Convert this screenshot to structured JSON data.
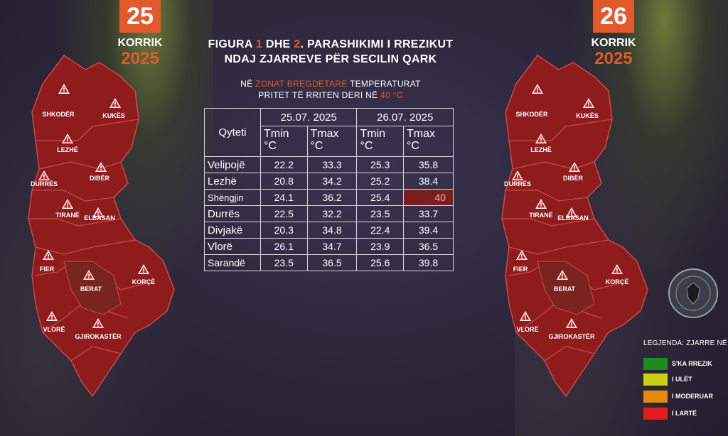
{
  "left_date": {
    "day": "25",
    "month": "KORRIK",
    "year": "2025"
  },
  "right_date": {
    "day": "26",
    "month": "KORRIK",
    "year": "2025"
  },
  "title": {
    "part1": "FIGURA ",
    "num1": "1",
    "part2": " DHE ",
    "num2": "2",
    "part3": ". PARASHIKIMI I RREZIKUT",
    "line2": "NDAJ ZJARREVE PËR SECILIN QARK"
  },
  "subtitle": {
    "pre": "NË ",
    "hl": "ZONAT BREGDETARE",
    "post": " TEMPERATURAT",
    "line2": "PRITET TË RRITEN DERI NË ",
    "hl2": "40 °C"
  },
  "table": {
    "city_header": "Qyteti",
    "date1": "25.07. 2025",
    "date2": "26.07. 2025",
    "tmin": "Tmin °C",
    "tmax": "Tmax °C",
    "rows": [
      {
        "city": "Velipojë",
        "v": [
          "22.2",
          "33.3",
          "25.3",
          "35.8"
        ]
      },
      {
        "city": "Lezhë",
        "v": [
          "20.8",
          "34.2",
          "25.2",
          "38.4"
        ]
      },
      {
        "city": "Shëngjin",
        "v": [
          "24.1",
          "36.2",
          "25.4",
          "40"
        ]
      },
      {
        "city": "Durrës",
        "v": [
          "22.5",
          "32.2",
          "23.5",
          "33.7"
        ]
      },
      {
        "city": "Divjakë",
        "v": [
          "20.3",
          "34.8",
          "22.4",
          "39.4"
        ]
      },
      {
        "city": "Vlorë",
        "v": [
          "26.1",
          "34.7",
          "23.9",
          "36.5"
        ]
      },
      {
        "city": "Sarandë",
        "v": [
          "23.5",
          "36.5",
          "25.6",
          "39.8"
        ]
      }
    ]
  },
  "regions": [
    "SHKODËR",
    "KUKËS",
    "LEZHË",
    "DIBËR",
    "DURRËS",
    "TIRANË",
    "ELBASAN",
    "FIER",
    "BERAT",
    "KORÇË",
    "VLORË",
    "GJIROKASTËR"
  ],
  "legend": {
    "title": "LEGJENDA: ZJARRE NË",
    "items": [
      {
        "label": "S'KA RREZIK",
        "color": "#1f8a1f"
      },
      {
        "label": "I ULËT",
        "color": "#c8d20e"
      },
      {
        "label": "I MODERUAR",
        "color": "#e68a0c"
      },
      {
        "label": "I LARTË",
        "color": "#e51b1b"
      }
    ]
  },
  "colors": {
    "accent": "#e25a2b",
    "map_fill": "#8e1c1c"
  }
}
